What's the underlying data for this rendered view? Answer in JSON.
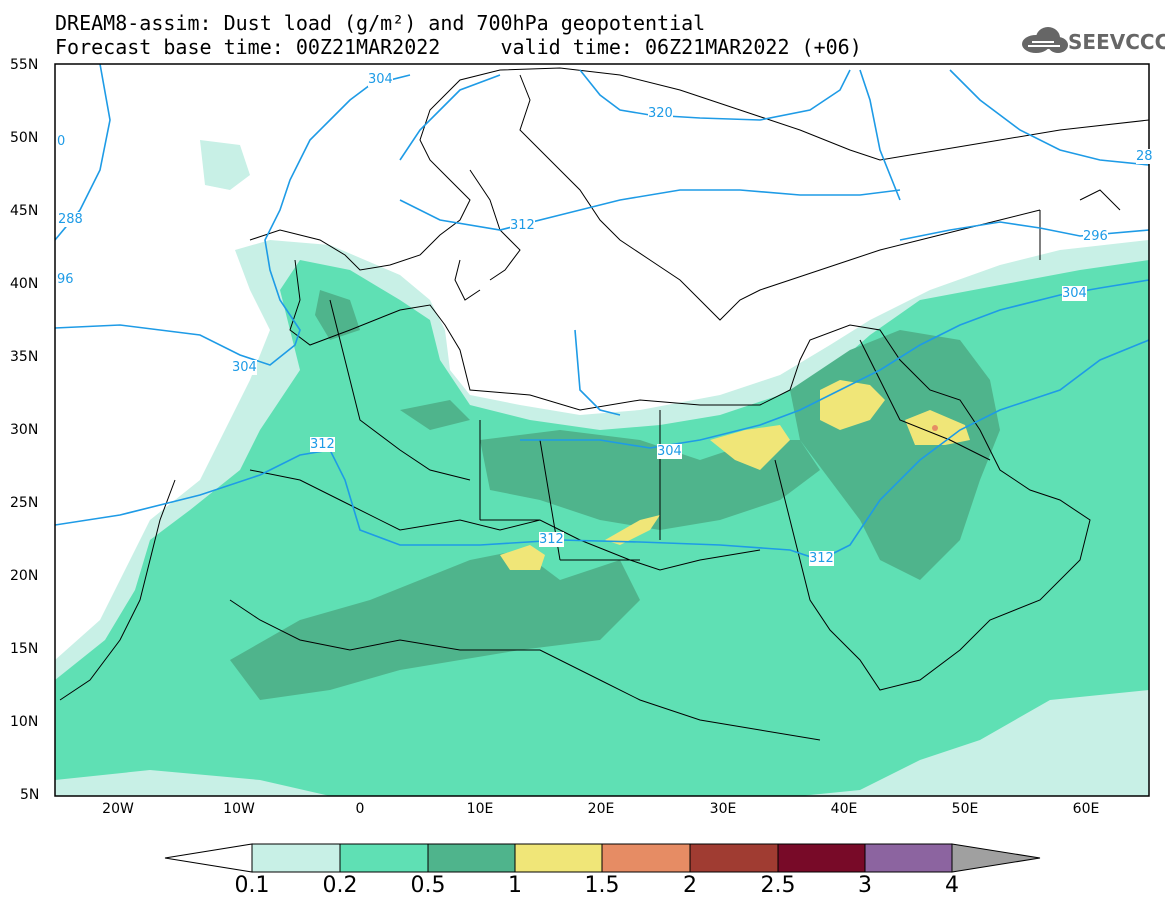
{
  "title": {
    "line1": "DREAM8-assim: Dust load (g/m²) and 700hPa geopotential",
    "line2": "Forecast base time: 00Z21MAR2022     valid time: 06Z21MAR2022 (+06)"
  },
  "logo": {
    "text": "SEEVCCC",
    "icon": "cloud-icon"
  },
  "map": {
    "lat_labels": [
      "55N",
      "50N",
      "45N",
      "40N",
      "35N",
      "30N",
      "25N",
      "20N",
      "15N",
      "10N",
      "5N"
    ],
    "lon_labels": [
      "20W",
      "10W",
      "0",
      "10E",
      "20E",
      "30E",
      "40E",
      "50E",
      "60E"
    ],
    "contour_labels": [
      "304",
      "320",
      "288",
      "312",
      "296",
      "304",
      "304",
      "312",
      "304",
      "312",
      "28",
      "96",
      "0"
    ]
  },
  "colorbar": {
    "ticks": [
      "0.1",
      "0.2",
      "0.5",
      "1",
      "1.5",
      "2",
      "2.5",
      "3",
      "4"
    ],
    "colors": [
      "#c8f0e6",
      "#5fe0b4",
      "#4fb48c",
      "#f0e678",
      "#e68c64",
      "#a03c32",
      "#780a28",
      "#8c64a0",
      "#a0a0a0"
    ]
  },
  "legend_colors": {
    "level_01": "#c8f0e6",
    "level_02": "#5fe0b4",
    "level_05": "#4fb48c",
    "level_1": "#f0e678",
    "contour": "#1e9be6"
  }
}
